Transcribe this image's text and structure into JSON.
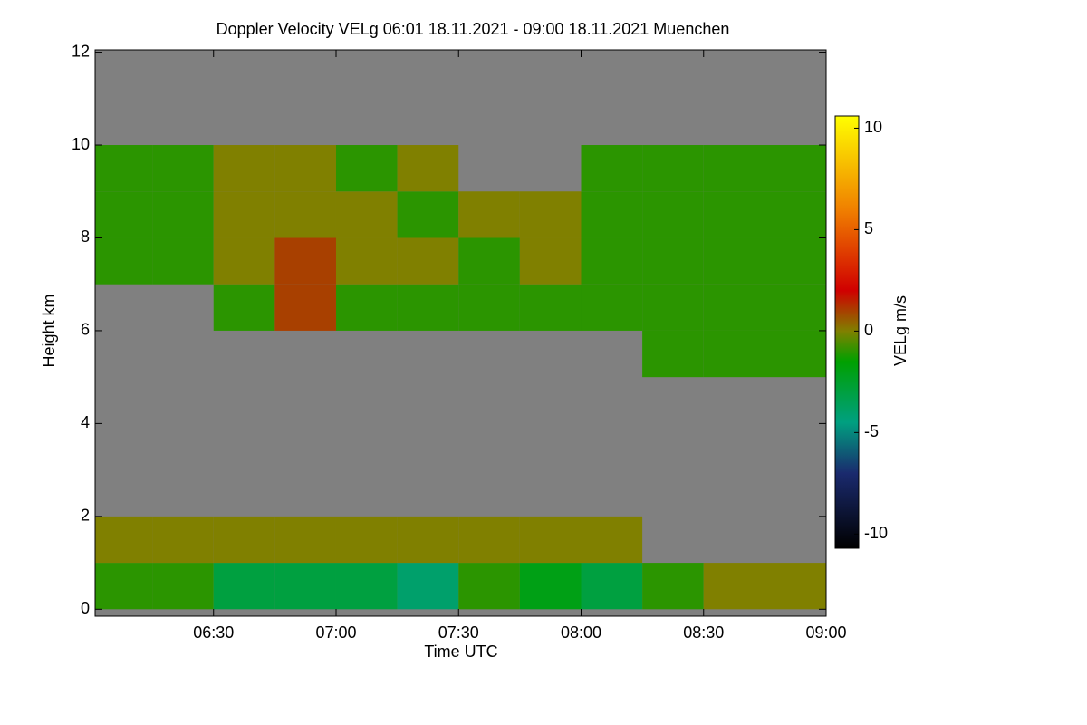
{
  "chart_data": {
    "type": "heatmap",
    "title": "Doppler Velocity VELg   06:01 18.11.2021 - 09:00 18.11.2021 Muenchen",
    "x_label": "Time UTC",
    "y_label": "Height km",
    "colorbar_label": "VELg m/s",
    "xlim": [
      6.0167,
      9.0
    ],
    "xticks": [
      {
        "value": 6.5,
        "label": "06:30"
      },
      {
        "value": 7.0,
        "label": "07:00"
      },
      {
        "value": 7.5,
        "label": "07:30"
      },
      {
        "value": 8.0,
        "label": "08:00"
      },
      {
        "value": 8.5,
        "label": "08:30"
      },
      {
        "value": 9.0,
        "label": "09:00"
      }
    ],
    "ylim": [
      -0.15,
      12.05
    ],
    "yticks": [
      0,
      2,
      4,
      6,
      8,
      10,
      12
    ],
    "zlim": [
      -10.7,
      10.6
    ],
    "zticks": [
      -10,
      -5,
      0,
      5,
      10
    ],
    "colorscale": [
      [
        -10.7,
        "#000000"
      ],
      [
        -7,
        "#1a2a6e"
      ],
      [
        -4.5,
        "#00a080"
      ],
      [
        -1.5,
        "#00a000"
      ],
      [
        0,
        "#808000"
      ],
      [
        2,
        "#d00000"
      ],
      [
        6,
        "#f08000"
      ],
      [
        10.6,
        "#ffff00"
      ]
    ],
    "missing_color": "#808080",
    "x_bins": [
      6.0167,
      6.25,
      6.5,
      6.75,
      7.0,
      7.25,
      7.5,
      7.75,
      8.0,
      8.25,
      8.5,
      8.75,
      9.0
    ],
    "y_bins": [
      0,
      1,
      2,
      3,
      4,
      5,
      6,
      7,
      8,
      9,
      10,
      11,
      12
    ],
    "z": [
      [
        -1,
        -1,
        -3,
        -3,
        -3,
        -4,
        -1,
        -2,
        -3,
        -1,
        0,
        0
      ],
      [
        0,
        0,
        0,
        0,
        0,
        0,
        0,
        0,
        0,
        null,
        null,
        null
      ],
      [
        null,
        null,
        null,
        null,
        null,
        null,
        null,
        null,
        null,
        null,
        null,
        null
      ],
      [
        null,
        null,
        null,
        null,
        null,
        null,
        null,
        null,
        null,
        null,
        null,
        null
      ],
      [
        null,
        null,
        null,
        null,
        null,
        null,
        null,
        null,
        null,
        null,
        null,
        null
      ],
      [
        null,
        null,
        null,
        null,
        null,
        null,
        null,
        null,
        null,
        -1,
        -1,
        -1
      ],
      [
        null,
        null,
        -1,
        1,
        -1,
        -1,
        -1,
        -1,
        -1,
        -1,
        -1,
        -1
      ],
      [
        -1,
        -1,
        0,
        1,
        0,
        0,
        -1,
        0,
        -1,
        -1,
        -1,
        -1
      ],
      [
        -1,
        -1,
        0,
        0,
        0,
        -1,
        0,
        0,
        -1,
        -1,
        -1,
        -1
      ],
      [
        -1,
        -1,
        0,
        0,
        -1,
        0,
        null,
        null,
        -1,
        -1,
        -1,
        -1
      ],
      [
        null,
        null,
        null,
        null,
        null,
        null,
        null,
        null,
        null,
        null,
        null,
        null
      ],
      [
        null,
        null,
        null,
        null,
        null,
        null,
        null,
        null,
        null,
        null,
        null,
        null
      ]
    ]
  }
}
